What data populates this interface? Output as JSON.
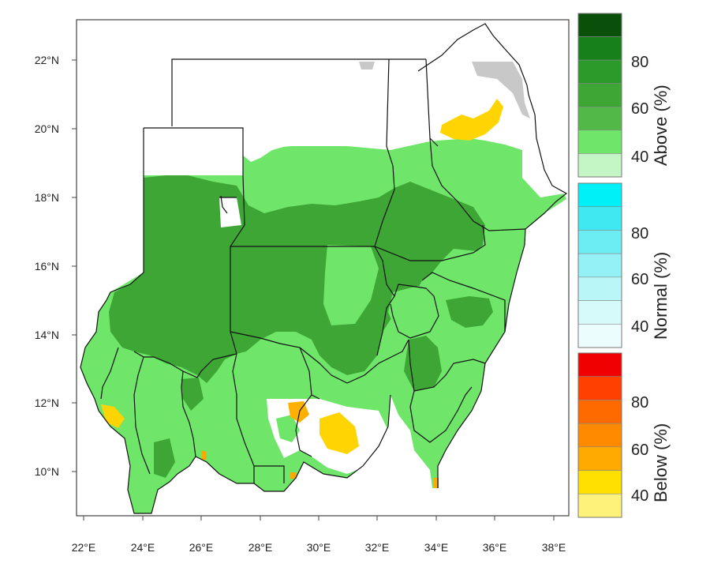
{
  "map": {
    "x_ticks": [
      "22°E",
      "24°E",
      "26°E",
      "28°E",
      "30°E",
      "32°E",
      "34°E",
      "36°E",
      "38°E"
    ],
    "y_ticks": [
      "10°N",
      "12°N",
      "14°N",
      "16°N",
      "18°N",
      "20°N",
      "22°N"
    ],
    "categories": {
      "above": {
        "title": "Above (%)",
        "labels": [
          "80",
          "60",
          "40"
        ]
      },
      "normal": {
        "title": "Normal (%)",
        "labels": [
          "80",
          "60",
          "40"
        ]
      },
      "below": {
        "title": "Below (%)",
        "labels": [
          "80",
          "60",
          "40"
        ]
      }
    },
    "colors": {
      "above": [
        "#0a4f0a",
        "#18801a",
        "#2b9a2a",
        "#3da634",
        "#52b848",
        "#6fe66a",
        "#c4f5c4"
      ],
      "normal": [
        "#00f0f8",
        "#3ee9f2",
        "#6cecf3",
        "#94f2f6",
        "#b8f6f8",
        "#d6fafa",
        "#ecfdfd"
      ],
      "below": [
        "#f00000",
        "#ff4000",
        "#ff6a00",
        "#ff8a00",
        "#ffaa00",
        "#ffe000",
        "#fff27a"
      ],
      "dry_mask": "#c8c8c8"
    }
  }
}
